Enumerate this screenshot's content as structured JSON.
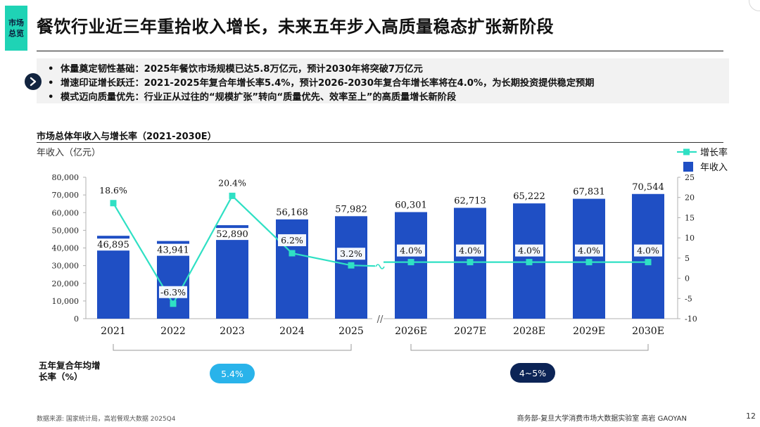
{
  "side_tag": "市场总览",
  "title": "餐饮行业近三年重拾收入增长，未来五年步入高质量稳态扩张新阶段",
  "bullets": [
    "体量奠定韧性基础：2025年餐饮市场规模已达5.8万亿元，预计2030年将突破7万亿元",
    "增速印证增长跃迁：2021-2025年复合年增长率5.4%，预计2026-2030年复合年增长率将在4.0%，为长期投资提供稳定预期",
    "模式迈向质量优先：行业正从过往的“规模扩张”转向“质量优先、效率至上”的高质量增长新阶段"
  ],
  "bullet_symbol": "•",
  "chart_title": "市场总体年收入与增长率（2021-2030E）",
  "y_axis_label": "年收入（亿元）",
  "chart_data": {
    "type": "bar",
    "categories": [
      "2021",
      "2022",
      "2023",
      "2024",
      "2025",
      "2026E",
      "2027E",
      "2028E",
      "2029E",
      "2030E"
    ],
    "series": [
      {
        "name": "年收入",
        "type": "bar",
        "axis": "left",
        "color": "#1f4fc4",
        "values": [
          46895,
          43941,
          52890,
          56168,
          57982,
          60301,
          62713,
          65222,
          67831,
          70544
        ],
        "labels": [
          "46,895",
          "43,941",
          "52,890",
          "56,168",
          "57,982",
          "60,301",
          "62,713",
          "65,222",
          "67,831",
          "70,544"
        ]
      },
      {
        "name": "增长率",
        "type": "line",
        "axis": "right",
        "color": "#2fe0c4",
        "values": [
          18.6,
          -6.3,
          20.4,
          6.2,
          3.2,
          4.0,
          4.0,
          4.0,
          4.0,
          4.0
        ],
        "labels": [
          "18.6%",
          "-6.3%",
          "20.4%",
          "6.2%",
          "3.2%",
          "4.0%",
          "4.0%",
          "4.0%",
          "4.0%",
          "4.0%"
        ]
      }
    ],
    "y_left": {
      "range": [
        0,
        80000
      ],
      "ticks": [
        0,
        10000,
        20000,
        30000,
        40000,
        50000,
        60000,
        70000,
        80000
      ],
      "tick_labels": [
        "0",
        "10,000",
        "20,000",
        "30,000",
        "40,000",
        "50,000",
        "60,000",
        "70,000",
        "80,000"
      ]
    },
    "y_right": {
      "range": [
        -10,
        25
      ],
      "ticks": [
        -10,
        -5,
        0,
        5,
        10,
        15,
        20,
        25
      ],
      "tick_labels": [
        "-10",
        "-5",
        "0",
        "5",
        "10",
        "15",
        "20",
        "25"
      ]
    },
    "axis_break_marker": "//",
    "legend_position": "top-right",
    "grid": false
  },
  "cagr": {
    "label": "五年复合年均增长率（%）",
    "periods": [
      {
        "value": "5.4%",
        "color": "#29b3ea"
      },
      {
        "value": "4~5%",
        "color": "#0c2456"
      }
    ]
  },
  "footer": {
    "source": "数据来源: 国家统计局，高岩餐观大数据 2025Q4",
    "org": "商务部-复旦大学消费市场大数据实验室   高岩 GAOYAN",
    "page": "12"
  }
}
